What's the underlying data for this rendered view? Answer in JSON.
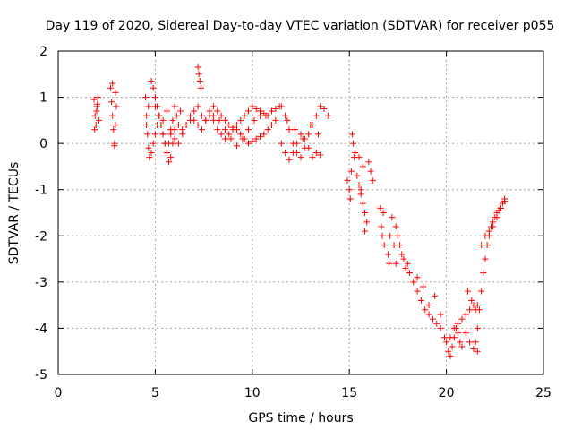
{
  "chart_data": {
    "type": "scatter",
    "title": "Day 119 of 2020, Sidereal Day-to-day VTEC variation (SDTVAR) for receiver p055",
    "xlabel": "GPS time / hours",
    "ylabel": "SDTVAR / TECUs",
    "xlim": [
      0,
      25
    ],
    "ylim": [
      -5,
      2
    ],
    "x_ticks": [
      0,
      5,
      10,
      15,
      20,
      25
    ],
    "y_ticks": [
      -5,
      -4,
      -3,
      -2,
      -1,
      0,
      1,
      2
    ],
    "x_tick_labels": [
      "0",
      "5",
      "10",
      "15",
      "20",
      "25"
    ],
    "y_tick_labels": [
      "-5",
      "-4",
      "-3",
      "-2",
      "-1",
      "0",
      "1",
      "2"
    ],
    "grid": true,
    "marker": "+",
    "color": "#ff0000",
    "series": [
      {
        "name": "p055",
        "x": [
          1.85,
          1.9,
          1.95,
          2.0,
          2.05,
          2.1,
          1.88,
          1.98,
          2.02,
          2.7,
          2.75,
          2.8,
          2.85,
          2.9,
          2.95,
          3.0,
          2.8,
          2.9,
          2.95,
          4.5,
          4.55,
          4.6,
          4.65,
          4.7,
          4.55,
          4.65,
          4.8,
          4.9,
          5.0,
          5.1,
          5.2,
          5.3,
          5.4,
          5.5,
          5.6,
          5.7,
          5.8,
          5.9,
          6.0,
          6.1,
          6.2,
          6.3,
          4.8,
          4.9,
          5.0,
          5.1,
          5.2,
          5.3,
          5.4,
          5.5,
          5.6,
          5.7,
          5.8,
          5.9,
          6.0,
          5.0,
          5.2,
          5.4,
          5.6,
          5.8,
          6.0,
          6.2,
          6.4,
          6.6,
          6.8,
          6.4,
          6.6,
          6.8,
          7.0,
          7.2,
          7.4,
          7.6,
          7.8,
          8.0,
          8.2,
          8.4,
          8.6,
          8.8,
          9.0,
          9.2,
          9.4,
          9.6,
          9.8,
          10.0,
          10.2,
          10.4,
          10.6,
          10.8,
          11.0,
          11.2,
          11.4,
          7.0,
          7.2,
          7.4,
          7.6,
          7.8,
          8.0,
          8.2,
          8.4,
          8.6,
          8.8,
          9.0,
          9.2,
          9.4,
          9.6,
          9.8,
          10.0,
          10.2,
          10.4,
          10.6,
          10.8,
          11.0,
          11.2,
          8.0,
          8.3,
          8.6,
          8.9,
          9.2,
          9.5,
          9.8,
          10.1,
          10.4,
          10.7,
          11.0,
          7.2,
          7.25,
          7.3,
          7.35,
          11.5,
          11.7,
          11.9,
          12.1,
          12.3,
          12.5,
          12.7,
          12.9,
          13.1,
          13.3,
          13.5,
          13.7,
          13.9,
          11.5,
          11.7,
          11.9,
          12.1,
          12.3,
          12.5,
          12.7,
          12.9,
          13.1,
          13.3,
          13.5,
          11.8,
          12.2,
          12.6,
          13.0,
          13.4,
          14.9,
          15.0,
          15.05,
          15.1,
          15.15,
          15.2,
          15.25,
          15.3,
          15.4,
          15.5,
          15.6,
          15.7,
          15.8,
          15.9,
          15.5,
          15.7,
          15.6,
          15.8,
          16.0,
          16.1,
          16.2,
          16.6,
          16.65,
          16.7,
          16.75,
          16.8,
          17.0,
          17.05,
          17.1,
          17.2,
          17.3,
          17.4,
          17.4,
          17.5,
          17.6,
          17.7,
          17.8,
          17.9,
          18.0,
          18.1,
          18.3,
          18.5,
          18.7,
          18.9,
          19.1,
          19.3,
          19.5,
          19.7,
          19.9,
          18.5,
          18.8,
          19.1,
          19.4,
          19.7,
          20.0,
          20.1,
          20.2,
          20.3,
          20.4,
          20.5,
          20.6,
          20.7,
          20.8,
          20.2,
          20.4,
          20.6,
          20.8,
          21.0,
          21.2,
          21.4,
          21.6,
          21.1,
          21.3,
          21.5,
          21.0,
          21.2,
          21.4,
          21.6,
          21.5,
          21.6,
          21.7,
          21.8,
          21.9,
          22.0,
          22.1,
          22.2,
          22.3,
          22.4,
          22.5,
          22.6,
          22.7,
          22.8,
          22.9,
          23.0,
          21.8,
          22.0,
          22.2,
          22.4,
          22.6,
          22.8,
          23.0
        ],
        "y": [
          0.95,
          0.6,
          0.4,
          0.8,
          1.0,
          0.5,
          0.3,
          0.7,
          0.85,
          1.2,
          0.9,
          0.6,
          0.3,
          0.0,
          0.4,
          0.8,
          1.3,
          -0.05,
          1.1,
          1.0,
          0.6,
          0.2,
          -0.1,
          -0.3,
          0.4,
          0.8,
          1.35,
          1.2,
          1.0,
          0.8,
          0.6,
          0.4,
          0.2,
          0.0,
          -0.2,
          0.0,
          0.2,
          0.5,
          0.8,
          0.6,
          0.4,
          0.7,
          -0.2,
          0.0,
          0.2,
          0.4,
          0.6,
          0.4,
          0.2,
          0.0,
          -0.2,
          -0.4,
          -0.3,
          0.0,
          0.3,
          0.8,
          0.6,
          0.5,
          0.7,
          0.3,
          0.1,
          0.0,
          0.2,
          0.4,
          0.6,
          0.3,
          0.4,
          0.5,
          0.5,
          0.4,
          0.3,
          0.5,
          0.6,
          0.5,
          0.3,
          0.2,
          0.1,
          0.2,
          0.3,
          0.4,
          0.5,
          0.6,
          0.7,
          0.8,
          0.75,
          0.7,
          0.65,
          0.6,
          0.7,
          0.75,
          0.8,
          0.7,
          0.8,
          0.6,
          0.5,
          0.7,
          0.8,
          0.7,
          0.6,
          0.5,
          0.4,
          0.35,
          0.3,
          0.2,
          0.1,
          0.0,
          0.05,
          0.1,
          0.15,
          0.2,
          0.3,
          0.4,
          0.5,
          0.6,
          0.5,
          0.3,
          0.1,
          -0.05,
          0.1,
          0.3,
          0.5,
          0.6,
          0.6,
          0.7,
          1.65,
          1.5,
          1.35,
          1.2,
          0.8,
          0.6,
          0.3,
          0.0,
          -0.2,
          -0.3,
          -0.1,
          0.2,
          0.4,
          0.6,
          0.8,
          0.75,
          0.6,
          0.0,
          -0.2,
          -0.35,
          -0.2,
          0.0,
          0.2,
          0.1,
          -0.1,
          -0.3,
          -0.2,
          -0.25,
          0.5,
          0.3,
          0.1,
          0.4,
          0.2,
          -0.8,
          -1.0,
          -1.2,
          -0.6,
          0.2,
          0.0,
          -0.3,
          -0.2,
          -0.7,
          -0.9,
          -1.1,
          -1.3,
          -1.5,
          -1.7,
          -0.3,
          -0.5,
          -1.0,
          -1.9,
          -0.4,
          -0.6,
          -0.8,
          -1.4,
          -1.8,
          -2.0,
          -1.5,
          -2.2,
          -2.4,
          -2.6,
          -2.0,
          -1.6,
          -2.2,
          -2.6,
          -1.8,
          -2.0,
          -2.2,
          -2.4,
          -2.5,
          -2.7,
          -2.6,
          -2.8,
          -3.0,
          -3.2,
          -3.4,
          -3.6,
          -3.7,
          -3.8,
          -3.9,
          -4.0,
          -4.2,
          -2.9,
          -3.1,
          -3.5,
          -3.3,
          -3.7,
          -4.3,
          -4.5,
          -4.6,
          -4.4,
          -4.2,
          -4.0,
          -4.1,
          -4.3,
          -4.4,
          -4.2,
          -4.0,
          -3.9,
          -3.8,
          -3.7,
          -3.6,
          -3.5,
          -3.5,
          -3.2,
          -3.4,
          -3.6,
          -4.1,
          -4.3,
          -4.45,
          -4.5,
          -4.3,
          -4.0,
          -3.6,
          -3.2,
          -2.8,
          -2.5,
          -2.2,
          -2.0,
          -1.8,
          -1.7,
          -1.6,
          -1.5,
          -1.45,
          -1.4,
          -1.3,
          -1.25,
          -2.2,
          -2.0,
          -1.9,
          -1.8,
          -1.6,
          -1.4,
          -1.2
        ]
      }
    ]
  }
}
